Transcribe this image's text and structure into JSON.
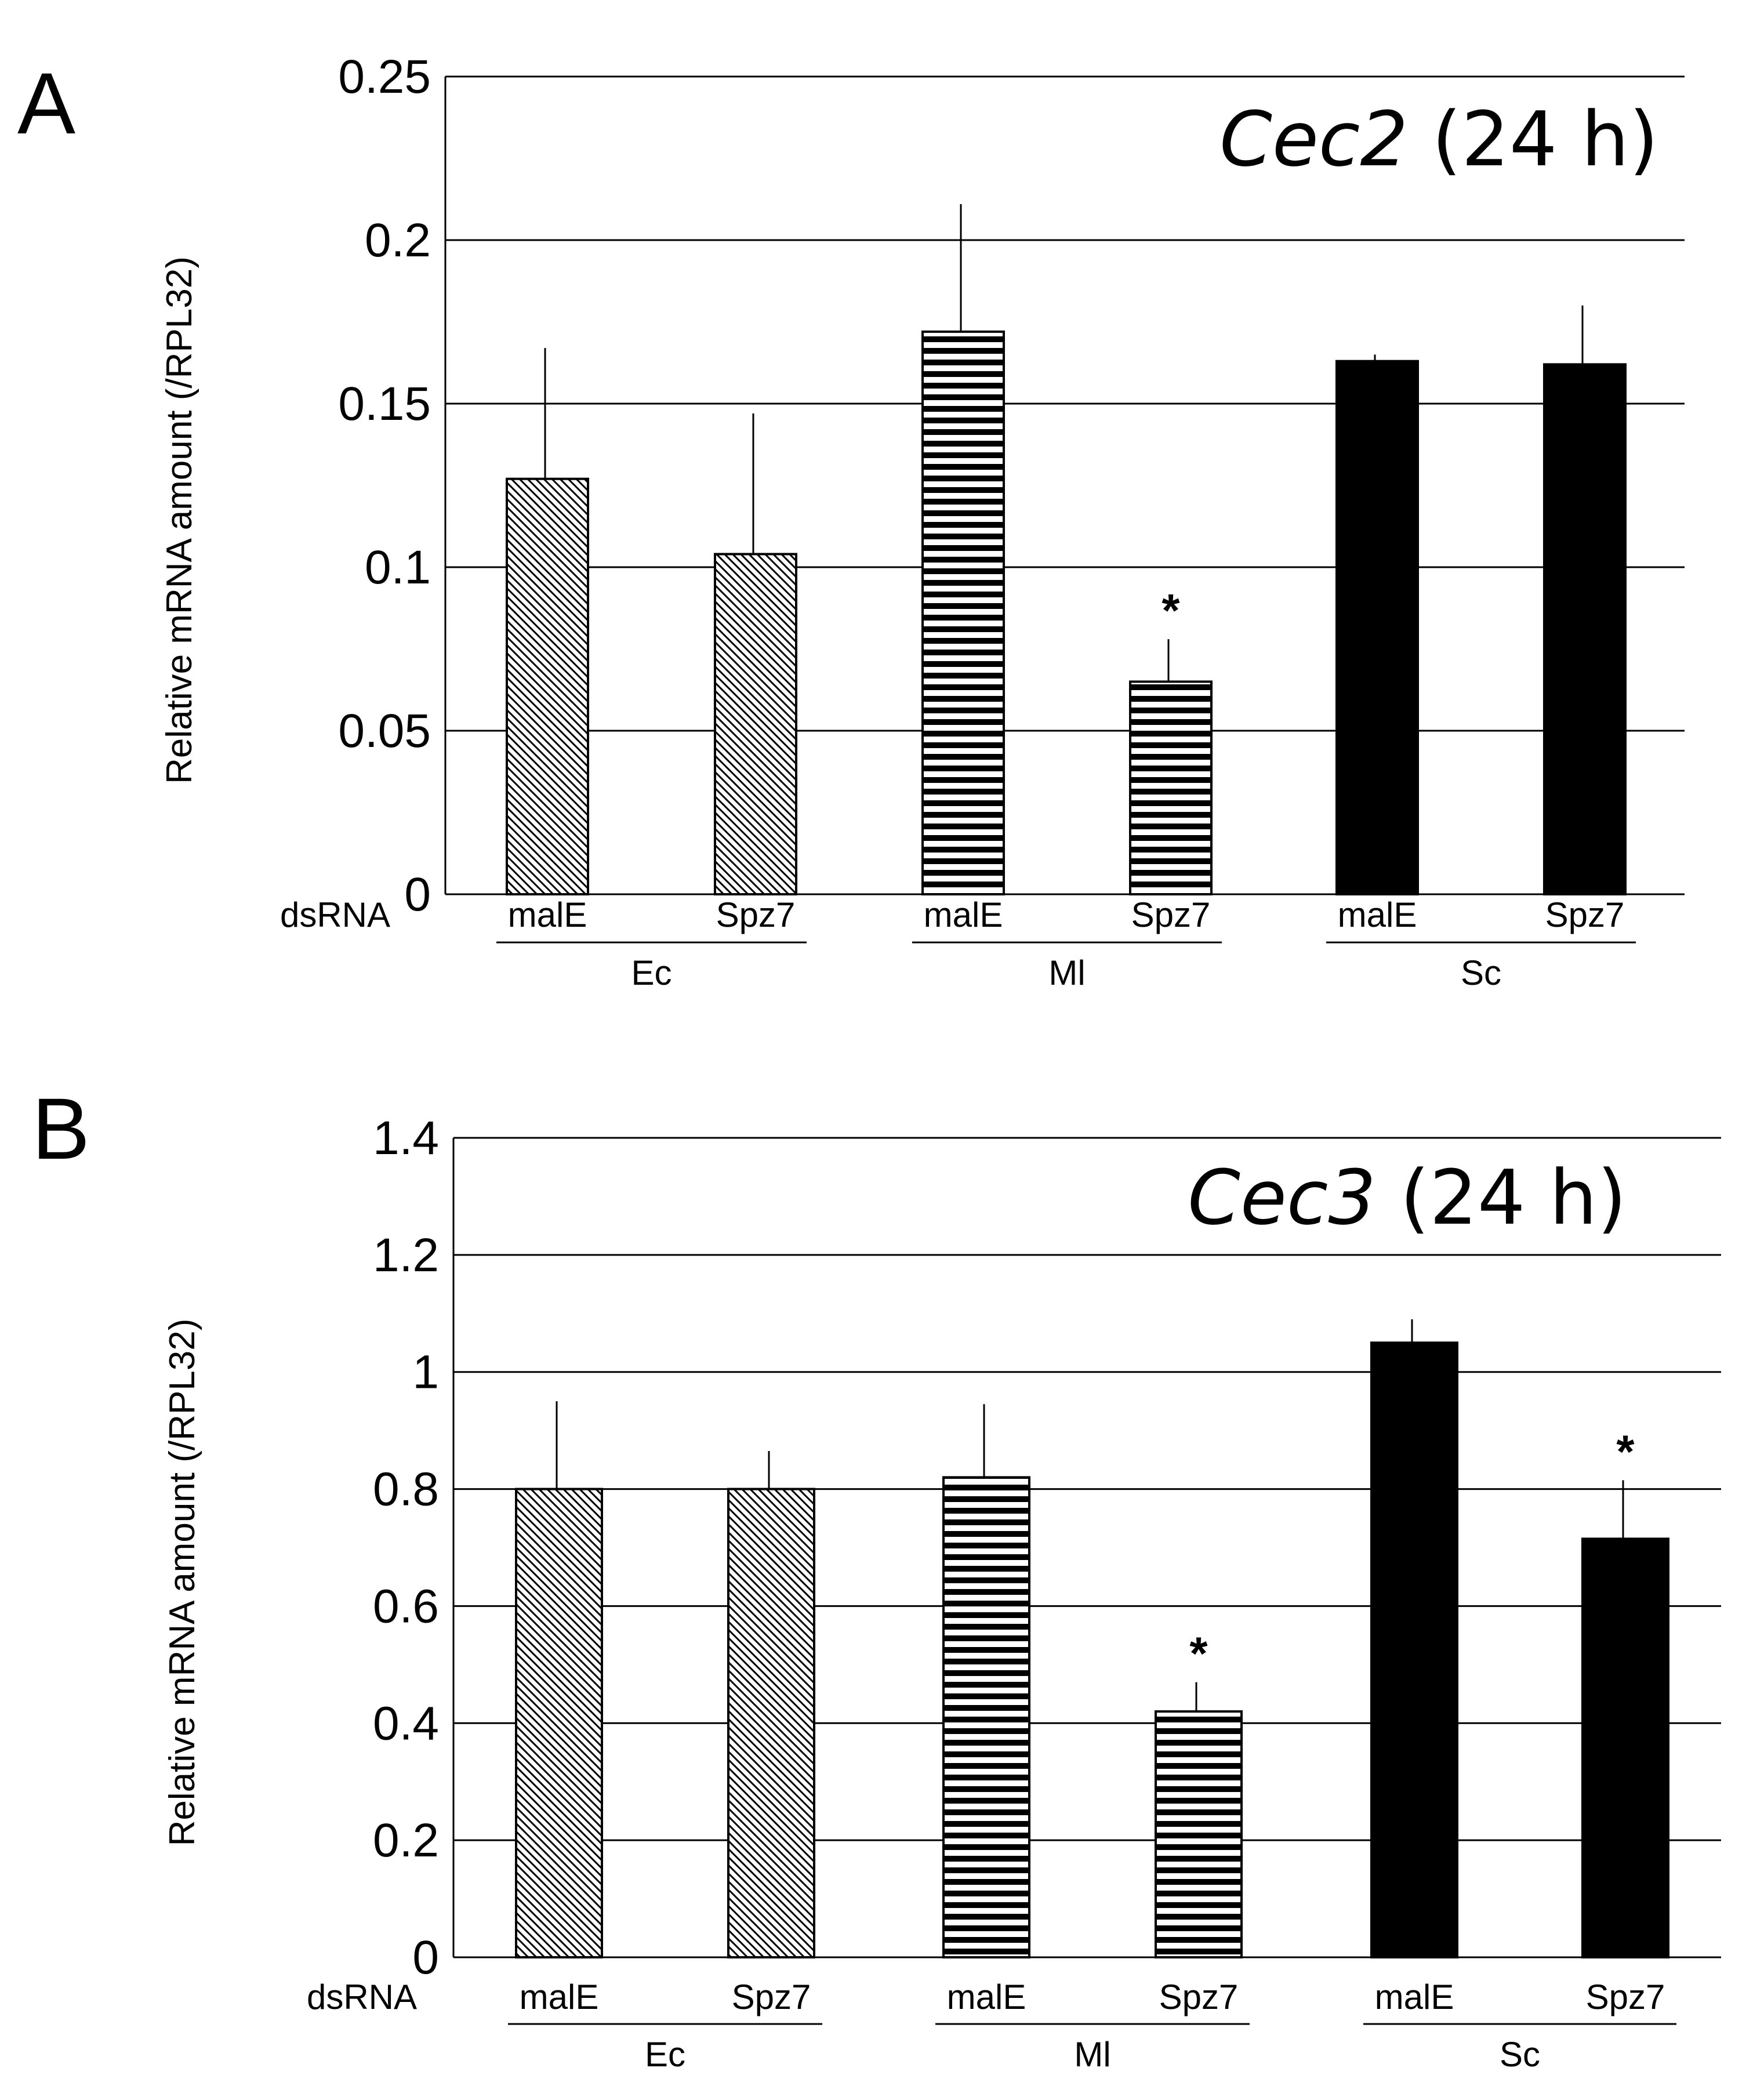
{
  "chart_data": [
    {
      "panel": "A",
      "type": "bar",
      "title_gene": "Cec2",
      "title_suffix": " (24 h)",
      "ylabel": "Relative mRNA amount (/RPL32)",
      "ylim": [
        0,
        0.25
      ],
      "yticks": [
        0,
        0.05,
        0.1,
        0.15,
        0.2,
        0.25
      ],
      "ytick_labels": [
        "0",
        "0.05",
        "0.1",
        "0.15",
        "0.2",
        "0.25"
      ],
      "x_prefix": "dsRNA",
      "groups": [
        "Ec",
        "Ml",
        "Sc"
      ],
      "bars": [
        {
          "group": "Ec",
          "label": "malE",
          "value": 0.127,
          "error": 0.04,
          "pattern": "diagonal",
          "star": ""
        },
        {
          "group": "Ec",
          "label": "Spz7",
          "value": 0.104,
          "error": 0.043,
          "pattern": "diagonal",
          "star": ""
        },
        {
          "group": "Ml",
          "label": "malE",
          "value": 0.172,
          "error": 0.039,
          "pattern": "horizontal",
          "star": ""
        },
        {
          "group": "Ml",
          "label": "Spz7",
          "value": 0.065,
          "error": 0.013,
          "pattern": "horizontal",
          "star": "*"
        },
        {
          "group": "Sc",
          "label": "malE",
          "value": 0.163,
          "error": 0.002,
          "pattern": "solid",
          "star": ""
        },
        {
          "group": "Sc",
          "label": "Spz7",
          "value": 0.162,
          "error": 0.018,
          "pattern": "solid",
          "star": ""
        }
      ]
    },
    {
      "panel": "B",
      "type": "bar",
      "title_gene": "Cec3",
      "title_suffix": " (24 h)",
      "ylabel": "Relative mRNA amount (/RPL32)",
      "ylim": [
        0,
        1.4
      ],
      "yticks": [
        0,
        0.2,
        0.4,
        0.6,
        0.8,
        1.0,
        1.2,
        1.4
      ],
      "ytick_labels": [
        "0",
        "0.2",
        "0.4",
        "0.6",
        "0.8",
        "1",
        "1.2",
        "1.4"
      ],
      "x_prefix": "dsRNA",
      "groups": [
        "Ec",
        "Ml",
        "Sc"
      ],
      "bars": [
        {
          "group": "Ec",
          "label": "malE",
          "value": 0.8,
          "error": 0.15,
          "pattern": "diagonal",
          "star": ""
        },
        {
          "group": "Ec",
          "label": "Spz7",
          "value": 0.8,
          "error": 0.065,
          "pattern": "diagonal",
          "star": ""
        },
        {
          "group": "Ml",
          "label": "malE",
          "value": 0.82,
          "error": 0.125,
          "pattern": "horizontal",
          "star": ""
        },
        {
          "group": "Ml",
          "label": "Spz7",
          "value": 0.42,
          "error": 0.05,
          "pattern": "horizontal",
          "star": "*"
        },
        {
          "group": "Sc",
          "label": "malE",
          "value": 1.05,
          "error": 0.04,
          "pattern": "solid",
          "star": ""
        },
        {
          "group": "Sc",
          "label": "Spz7",
          "value": 0.715,
          "error": 0.1,
          "pattern": "solid",
          "star": "*"
        }
      ]
    }
  ]
}
